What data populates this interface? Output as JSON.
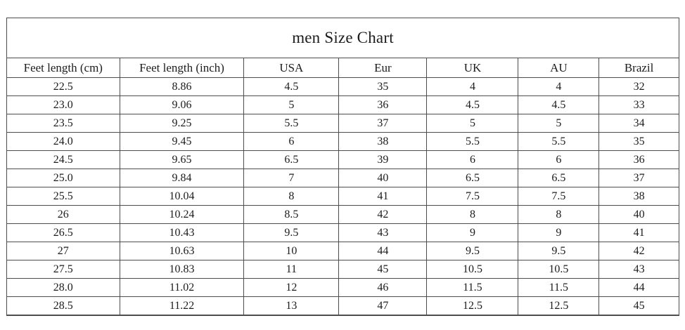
{
  "table": {
    "title": "men Size Chart",
    "columns": [
      "Feet length (cm)",
      "Feet length (inch)",
      "USA",
      "Eur",
      "UK",
      "AU",
      "Brazil"
    ],
    "rows": [
      [
        "22.5",
        "8.86",
        "4.5",
        "35",
        "4",
        "4",
        "32"
      ],
      [
        "23.0",
        "9.06",
        "5",
        "36",
        "4.5",
        "4.5",
        "33"
      ],
      [
        "23.5",
        "9.25",
        "5.5",
        "37",
        "5",
        "5",
        "34"
      ],
      [
        "24.0",
        "9.45",
        "6",
        "38",
        "5.5",
        "5.5",
        "35"
      ],
      [
        "24.5",
        "9.65",
        "6.5",
        "39",
        "6",
        "6",
        "36"
      ],
      [
        "25.0",
        "9.84",
        "7",
        "40",
        "6.5",
        "6.5",
        "37"
      ],
      [
        "25.5",
        "10.04",
        "8",
        "41",
        "7.5",
        "7.5",
        "38"
      ],
      [
        "26",
        "10.24",
        "8.5",
        "42",
        "8",
        "8",
        "40"
      ],
      [
        "26.5",
        "10.43",
        "9.5",
        "43",
        "9",
        "9",
        "41"
      ],
      [
        "27",
        "10.63",
        "10",
        "44",
        "9.5",
        "9.5",
        "42"
      ],
      [
        "27.5",
        "10.83",
        "11",
        "45",
        "10.5",
        "10.5",
        "43"
      ],
      [
        "28.0",
        "11.02",
        "12",
        "46",
        "11.5",
        "11.5",
        "44"
      ],
      [
        "28.5",
        "11.22",
        "13",
        "47",
        "12.5",
        "12.5",
        "45"
      ]
    ],
    "colors": {
      "text": "#1c1c1c",
      "border": "#4d4d4d",
      "background": "#ffffff"
    }
  }
}
